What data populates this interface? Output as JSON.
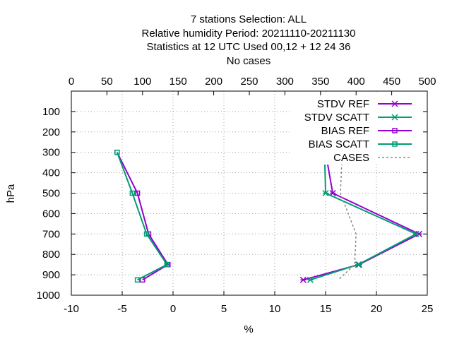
{
  "chart_data": {
    "type": "line",
    "title_lines": [
      "7 stations Selection: ALL",
      "Relative humidity  Period: 20211110-20211130",
      "Statistics at 12 UTC  Used  00,12  + 12 24 36",
      "No cases"
    ],
    "xlabel": "%",
    "ylabel": "hPa",
    "xlim": [
      -10,
      25
    ],
    "ylim": [
      1000,
      0
    ],
    "x_ticks": [
      -10,
      -5,
      0,
      5,
      10,
      15,
      20,
      25
    ],
    "y_ticks": [
      100,
      200,
      300,
      400,
      500,
      600,
      700,
      800,
      900,
      1000
    ],
    "x2lim": [
      0,
      500
    ],
    "x2_ticks": [
      0,
      50,
      100,
      150,
      200,
      250,
      300,
      350,
      400,
      450,
      500
    ],
    "grid": true,
    "legend_position": "top-right",
    "series": [
      {
        "name": "STDV REF",
        "color": "#9400d3",
        "marker": "asterisk",
        "points": [
          [
            15.0,
            300
          ],
          [
            15.7,
            500
          ],
          [
            24.2,
            700
          ],
          [
            18.3,
            850
          ],
          [
            12.8,
            925
          ]
        ]
      },
      {
        "name": "STDV SCATT",
        "color": "#009e73",
        "marker": "asterisk",
        "points": [
          [
            14.9,
            300
          ],
          [
            15.0,
            500
          ],
          [
            23.9,
            700
          ],
          [
            18.2,
            850
          ],
          [
            13.5,
            925
          ]
        ]
      },
      {
        "name": "BIAS REF",
        "color": "#9400d3",
        "marker": "square",
        "points": [
          [
            -5.5,
            300
          ],
          [
            -3.5,
            500
          ],
          [
            -2.4,
            700
          ],
          [
            -0.5,
            850
          ],
          [
            -3.0,
            925
          ]
        ]
      },
      {
        "name": "BIAS SCATT",
        "color": "#009e73",
        "marker": "square",
        "points": [
          [
            -5.5,
            300
          ],
          [
            -4.0,
            500
          ],
          [
            -2.6,
            700
          ],
          [
            -0.6,
            850
          ],
          [
            -3.5,
            925
          ]
        ]
      },
      {
        "name": "CASES",
        "color": "#888888",
        "marker": "none",
        "dashed": true,
        "axis": "x2",
        "points": [
          [
            381,
            270
          ],
          [
            378,
            500
          ],
          [
            400,
            700
          ],
          [
            398,
            850
          ],
          [
            375,
            925
          ]
        ]
      }
    ]
  }
}
